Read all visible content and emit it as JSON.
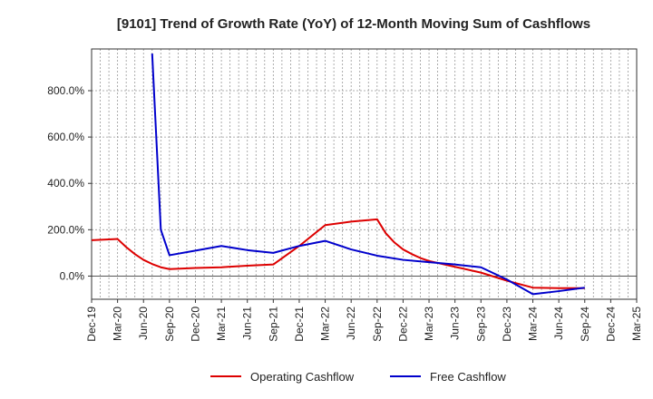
{
  "chart_data": {
    "type": "line",
    "title": "[9101]  Trend of Growth Rate (YoY) of 12-Month Moving Sum of Cashflows",
    "xlabel": "",
    "ylabel": "",
    "ylim": [
      -100,
      980
    ],
    "yticks": [
      0,
      200,
      400,
      600,
      800
    ],
    "ytick_labels": [
      "0.0%",
      "200.0%",
      "400.0%",
      "600.0%",
      "800.0%"
    ],
    "x_range": [
      "Dec-19",
      "Mar-25"
    ],
    "x_tick_labels": [
      "Dec-19",
      "Mar-20",
      "Jun-20",
      "Sep-20",
      "Dec-20",
      "Mar-21",
      "Jun-21",
      "Sep-21",
      "Dec-21",
      "Mar-22",
      "Jun-22",
      "Sep-22",
      "Dec-22",
      "Mar-23",
      "Jun-23",
      "Sep-23",
      "Dec-23",
      "Mar-24",
      "Jun-24",
      "Sep-24",
      "Dec-24",
      "Mar-25"
    ],
    "grid": true,
    "legend_position": "bottom",
    "series": [
      {
        "name": "Operating Cashflow",
        "color": "#dd0000",
        "points": [
          [
            "Dec-19",
            155
          ],
          [
            "Mar-20",
            160
          ],
          [
            "Apr-20",
            125
          ],
          [
            "May-20",
            95
          ],
          [
            "Jun-20",
            70
          ],
          [
            "Jul-20",
            52
          ],
          [
            "Aug-20",
            38
          ],
          [
            "Sep-20",
            30
          ],
          [
            "Dec-20",
            35
          ],
          [
            "Mar-21",
            38
          ],
          [
            "Jun-21",
            45
          ],
          [
            "Sep-21",
            50
          ],
          [
            "Dec-21",
            130
          ],
          [
            "Mar-22",
            220
          ],
          [
            "Jun-22",
            235
          ],
          [
            "Sep-22",
            245
          ],
          [
            "Oct-22",
            185
          ],
          [
            "Nov-22",
            145
          ],
          [
            "Dec-22",
            115
          ],
          [
            "Jan-23",
            95
          ],
          [
            "Feb-23",
            78
          ],
          [
            "Mar-23",
            65
          ],
          [
            "Jun-23",
            40
          ],
          [
            "Sep-23",
            15
          ],
          [
            "Dec-23",
            -20
          ],
          [
            "Mar-24",
            -50
          ],
          [
            "Jun-24",
            -52
          ],
          [
            "Sep-24",
            -52
          ]
        ]
      },
      {
        "name": "Free Cashflow",
        "color": "#0000cc",
        "points": [
          [
            "Jul-20",
            960
          ],
          [
            "Aug-20",
            200
          ],
          [
            "Sep-20",
            90
          ],
          [
            "Dec-20",
            110
          ],
          [
            "Mar-21",
            130
          ],
          [
            "Jun-21",
            112
          ],
          [
            "Sep-21",
            100
          ],
          [
            "Dec-21",
            130
          ],
          [
            "Mar-22",
            152
          ],
          [
            "Jun-22",
            115
          ],
          [
            "Sep-22",
            88
          ],
          [
            "Dec-22",
            70
          ],
          [
            "Mar-23",
            60
          ],
          [
            "Jun-23",
            50
          ],
          [
            "Sep-23",
            38
          ],
          [
            "Dec-23",
            -15
          ],
          [
            "Mar-24",
            -78
          ],
          [
            "Jun-24",
            -65
          ],
          [
            "Sep-24",
            -50
          ]
        ]
      }
    ]
  }
}
